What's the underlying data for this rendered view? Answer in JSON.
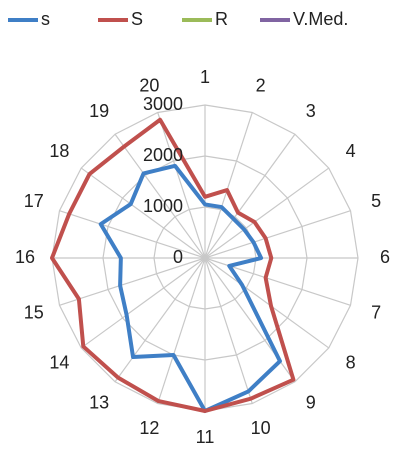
{
  "chart_data": {
    "type": "radar",
    "categories": [
      "1",
      "2",
      "3",
      "4",
      "5",
      "6",
      "7",
      "8",
      "9",
      "10",
      "11",
      "12",
      "13",
      "14",
      "15",
      "16",
      "17",
      "18",
      "19",
      "20"
    ],
    "series": [
      {
        "name": "s",
        "color": "#3f7fc6",
        "values": [
          1050,
          1050,
          950,
          950,
          1000,
          1100,
          500,
          900,
          2500,
          2750,
          3000,
          2000,
          2400,
          1900,
          1750,
          1650,
          2150,
          1800,
          2050,
          1900
        ]
      },
      {
        "name": "S",
        "color": "#c0504d",
        "values": [
          1200,
          1400,
          1100,
          1200,
          1250,
          1300,
          1250,
          1600,
          2950,
          2900,
          3000,
          2950,
          2900,
          2950,
          2600,
          3000,
          2800,
          2800,
          2700,
          2850
        ]
      },
      {
        "name": "R",
        "color": "#9bbb59",
        "values": [
          0,
          0,
          0,
          0,
          0,
          0,
          0,
          0,
          0,
          0,
          0,
          0,
          0,
          0,
          0,
          0,
          0,
          0,
          0,
          0
        ]
      },
      {
        "name": "V.Med.",
        "color": "#8064a2",
        "values": [
          0,
          0,
          0,
          0,
          0,
          0,
          0,
          0,
          0,
          0,
          0,
          0,
          0,
          0,
          0,
          0,
          0,
          0,
          0,
          0
        ]
      }
    ],
    "ylim": [
      0,
      3000
    ],
    "yticks": [
      0,
      1000,
      2000,
      3000
    ],
    "grid": true,
    "legend": "top"
  }
}
